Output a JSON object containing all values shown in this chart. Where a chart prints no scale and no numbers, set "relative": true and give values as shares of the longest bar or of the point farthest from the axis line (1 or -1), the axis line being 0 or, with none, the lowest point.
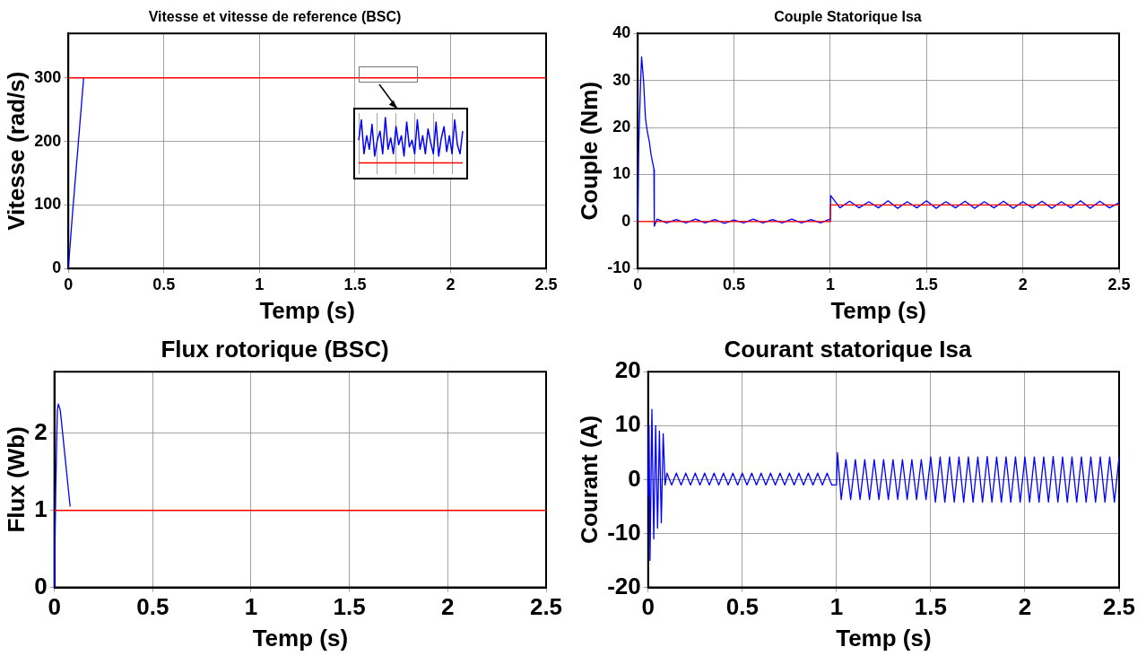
{
  "chart_data": [
    {
      "type": "line",
      "title": "Vitesse et vitesse de reference (BSC)",
      "xlabel": "Temp (s)",
      "ylabel": "Vitesse (rad/s)",
      "xlim": [
        0,
        2.5
      ],
      "xticks": [
        0,
        0.5,
        1,
        1.5,
        2,
        2.5
      ],
      "ylim": [
        0,
        370
      ],
      "yticks": [
        0,
        100,
        200,
        300
      ],
      "grid": true,
      "marker": "none",
      "series": [
        {
          "color": "#ff0000",
          "x": [
            0,
            2.5
          ],
          "values": [
            300,
            300
          ]
        },
        {
          "color": "#0000ff",
          "x": [
            0,
            0.02,
            0.05,
            0.08
          ],
          "values": [
            0,
            80,
            190,
            300
          ]
        }
      ]
    },
    {
      "type": "line",
      "title": "Couple Statorique Isa",
      "xlabel": "Temp (s)",
      "ylabel": "Couple (Nm)",
      "xlim": [
        0,
        2.5
      ],
      "xticks": [
        0,
        0.5,
        1,
        1.5,
        2,
        2.5
      ],
      "ylim": [
        -10,
        40
      ],
      "yticks": [
        -10,
        0,
        10,
        20,
        30,
        40
      ],
      "grid": true,
      "marker": "none",
      "series": [
        {
          "color": "#ff0000",
          "x": [
            0,
            1,
            1,
            2.5
          ],
          "values": [
            0,
            0,
            3.5,
            3.5
          ]
        },
        {
          "color": "#0000ff",
          "x": [
            0,
            0.005,
            0.015,
            0.02,
            0.03,
            0.04,
            0.05,
            0.06,
            0.07,
            0.08,
            0.084,
            0.086,
            0.1,
            0.15,
            0.2,
            0.25,
            0.3,
            0.35,
            0.4,
            0.45,
            0.5,
            0.55,
            0.6,
            0.65,
            0.7,
            0.75,
            0.8,
            0.85,
            0.9,
            0.95,
            0.998,
            1.0,
            1.002,
            1.05,
            1.1,
            1.15,
            1.2,
            1.25,
            1.3,
            1.35,
            1.4,
            1.45,
            1.5,
            1.55,
            1.6,
            1.65,
            1.7,
            1.75,
            1.8,
            1.85,
            1.9,
            1.95,
            2.0,
            2.05,
            2.1,
            2.15,
            2.2,
            2.25,
            2.3,
            2.35,
            2.4,
            2.45,
            2.5
          ],
          "values": [
            0,
            16,
            30,
            35,
            30,
            22,
            19,
            17,
            14,
            12,
            11,
            -1,
            0.5,
            -0.3,
            0.4,
            -0.3,
            0.5,
            -0.3,
            0.4,
            -0.4,
            0.3,
            -0.3,
            0.5,
            -0.3,
            0.4,
            -0.3,
            0.5,
            -0.3,
            0.4,
            -0.3,
            0.5,
            0,
            5.5,
            2.9,
            4.3,
            2.9,
            4.2,
            2.9,
            4.4,
            2.8,
            4.2,
            2.9,
            4.4,
            2.8,
            4.2,
            2.9,
            4.3,
            2.8,
            4.2,
            2.9,
            4.3,
            2.8,
            4.2,
            2.9,
            4.3,
            2.8,
            4.2,
            2.9,
            4.4,
            2.8,
            4.3,
            2.9,
            4
          ]
        }
      ]
    },
    {
      "type": "line",
      "title": "Flux rotorique (BSC)",
      "xlabel": "Temp (s)",
      "ylabel": "Flux (Wb)",
      "xlim": [
        0,
        2.5
      ],
      "xticks": [
        0,
        0.5,
        1,
        1.5,
        2,
        2.5
      ],
      "ylim": [
        0,
        2.8
      ],
      "yticks": [
        0,
        1,
        2
      ],
      "grid": true,
      "marker": "none",
      "series": [
        {
          "color": "#ff0000",
          "x": [
            0,
            2.5
          ],
          "values": [
            1,
            1
          ]
        },
        {
          "color": "#0000ff",
          "x": [
            0,
            0.003,
            0.007,
            0.015,
            0.02,
            0.03,
            0.05,
            0.08
          ],
          "values": [
            0,
            0.5,
            1.3,
            2.3,
            2.38,
            2.3,
            1.8,
            1.05
          ]
        }
      ]
    },
    {
      "type": "line",
      "title": "Courant statorique Isa",
      "xlabel": "Temp (s)",
      "ylabel": "Courant (A)",
      "xlim": [
        0,
        2.5
      ],
      "xticks": [
        0,
        0.5,
        1,
        1.5,
        2,
        2.5
      ],
      "ylim": [
        -20,
        20
      ],
      "yticks": [
        -20,
        -10,
        0,
        10,
        20
      ],
      "grid": true,
      "marker": "none",
      "series": [
        {
          "color": "#0000ff",
          "x": [
            0,
            0.005,
            0.01,
            0.02,
            0.03,
            0.04,
            0.05,
            0.06,
            0.07,
            0.08,
            0.09,
            0.1,
            0.125,
            0.15,
            0.175,
            0.2,
            0.225,
            0.25,
            0.275,
            0.3,
            0.325,
            0.35,
            0.375,
            0.4,
            0.425,
            0.45,
            0.475,
            0.5,
            0.525,
            0.55,
            0.575,
            0.6,
            0.625,
            0.65,
            0.675,
            0.7,
            0.725,
            0.75,
            0.775,
            0.8,
            0.825,
            0.85,
            0.875,
            0.9,
            0.925,
            0.95,
            0.975,
            1.0,
            1.005,
            1.025,
            1.05,
            1.075,
            1.1,
            1.125,
            1.15,
            1.175,
            1.2,
            1.225,
            1.25,
            1.275,
            1.3,
            1.325,
            1.35,
            1.375,
            1.4,
            1.425,
            1.45,
            1.475,
            1.5,
            1.525,
            1.55,
            1.575,
            1.6,
            1.625,
            1.65,
            1.675,
            1.7,
            1.725,
            1.75,
            1.775,
            1.8,
            1.825,
            1.85,
            1.875,
            1.9,
            1.925,
            1.95,
            1.975,
            2.0,
            2.025,
            2.05,
            2.075,
            2.1,
            2.125,
            2.15,
            2.175,
            2.2,
            2.225,
            2.25,
            2.275,
            2.3,
            2.325,
            2.35,
            2.375,
            2.4,
            2.425,
            2.45,
            2.475,
            2.5
          ],
          "values": [
            -3,
            10,
            -15,
            13,
            -11,
            10,
            -9,
            9,
            -8,
            8.5,
            -1,
            1.2,
            -1,
            1.2,
            -1,
            1.2,
            -1,
            1.2,
            -1,
            1.2,
            -1,
            1.2,
            -1,
            1.2,
            -1,
            1.2,
            -1,
            1.2,
            -1,
            1.2,
            -1,
            1.2,
            -1,
            1.2,
            -1,
            1.2,
            -1,
            1.2,
            -1,
            1.2,
            -1,
            1.2,
            -1,
            1.2,
            -1,
            1.2,
            -1,
            -1,
            5,
            -3.7,
            3.7,
            -3.7,
            3.7,
            -3.7,
            3.7,
            -3.7,
            3.7,
            -3.7,
            3.7,
            -3.7,
            3.7,
            -3.7,
            3.7,
            -3.7,
            3.7,
            -3.7,
            3.7,
            -3.7,
            4.2,
            -4.2,
            4.2,
            -4.2,
            4.2,
            -4.2,
            4.2,
            -4.2,
            4.2,
            -4.2,
            4.2,
            -4.2,
            4.3,
            -4.2,
            4.2,
            -4.2,
            4.2,
            -4.2,
            4.2,
            -4.2,
            4.2,
            -4.2,
            4.2,
            -4.2,
            4.2,
            -4.2,
            4.3,
            -4.2,
            4.2,
            -4.2,
            4.2,
            -4.2,
            4.2,
            -4.2,
            4.2,
            -4.2,
            4.2,
            -4.2,
            4.2,
            -4.2,
            4.2
          ]
        }
      ]
    },
    {
      "type": "line",
      "relative": true,
      "grid": "x",
      "marker": "none",
      "categories": [
        null,
        null,
        null,
        null,
        null,
        null,
        null,
        null,
        null,
        null,
        null,
        null,
        null,
        null,
        null,
        null,
        null,
        null,
        null,
        null,
        null,
        null,
        null,
        null,
        null,
        null,
        null,
        null,
        null,
        null,
        null,
        null,
        null,
        null,
        null,
        null,
        null,
        null,
        null,
        null
      ],
      "series": [
        {
          "color": "#ff0000",
          "values": [
            0,
            0,
            0,
            0,
            0,
            0,
            0,
            0,
            0,
            0,
            0,
            0,
            0,
            0,
            0,
            0,
            0,
            0,
            0,
            0,
            0,
            0,
            0,
            0,
            0,
            0,
            0,
            0,
            0,
            0,
            0,
            0,
            0,
            0,
            0,
            0,
            0,
            0,
            0,
            0
          ]
        },
        {
          "color": "#0000ff",
          "values": [
            0.5,
            0.95,
            0.2,
            0.6,
            0.3,
            0.85,
            0.15,
            0.5,
            0.7,
            0.2,
            1,
            0.3,
            0.55,
            0.2,
            0.8,
            0.4,
            0.6,
            0.15,
            0.9,
            0.35,
            0.5,
            0.2,
            0.95,
            0.3,
            0.6,
            0.2,
            0.75,
            0.45,
            0.2,
            0.9,
            0.15,
            0.55,
            0.8,
            0.25,
            0.6,
            0.2,
            0.95,
            0.4,
            0.2,
            0.7
          ]
        }
      ]
    }
  ]
}
